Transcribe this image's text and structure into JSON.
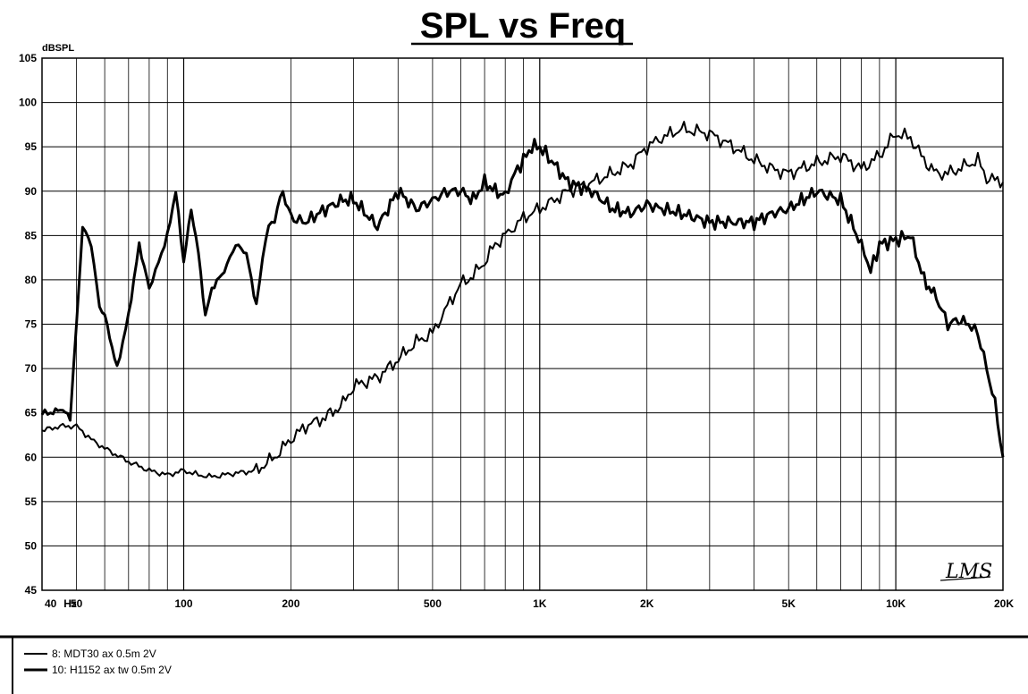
{
  "chart_data": {
    "type": "line",
    "title": "SPL vs Freq",
    "ylabel": "dBSPL",
    "xscale": "log",
    "xlim": [
      40,
      20000
    ],
    "ylim": [
      45,
      105
    ],
    "grid": true,
    "y_ticks": [
      "105",
      "100",
      "95",
      "90",
      "85",
      "80",
      "75",
      "70",
      "65",
      "60",
      "55",
      "50",
      "45"
    ],
    "x_ticks": [
      {
        "value": 40,
        "label": "40"
      },
      {
        "value": 48,
        "label": "Hz"
      },
      {
        "value": 50,
        "label": "50"
      },
      {
        "value": 100,
        "label": "100"
      },
      {
        "value": 200,
        "label": "200"
      },
      {
        "value": 500,
        "label": "500"
      },
      {
        "value": 1000,
        "label": "1K"
      },
      {
        "value": 2000,
        "label": "2K"
      },
      {
        "value": 5000,
        "label": "5K"
      },
      {
        "value": 10000,
        "label": "10K"
      },
      {
        "value": 20000,
        "label": "20K"
      }
    ],
    "legend_position": "bottom-left",
    "series": [
      {
        "name": "8: MDT30 ax 0.5m 2V",
        "x": [
          40,
          45,
          50,
          55,
          60,
          70,
          80,
          90,
          100,
          110,
          120,
          140,
          160,
          180,
          200,
          220,
          250,
          280,
          300,
          350,
          400,
          450,
          500,
          550,
          600,
          650,
          700,
          750,
          800,
          850,
          900,
          1000,
          1100,
          1200,
          1400,
          1600,
          1800,
          2000,
          2200,
          2500,
          3000,
          3500,
          4000,
          4500,
          5000,
          6000,
          7000,
          8000,
          9000,
          10000,
          11000,
          12000,
          13000,
          14000,
          15000,
          17000,
          18000,
          20000
        ],
        "y": [
          63,
          63.5,
          63.5,
          62,
          61,
          59.5,
          58.5,
          58,
          58.5,
          58,
          57.8,
          58.2,
          58.5,
          60,
          62,
          63.5,
          64.5,
          66,
          68,
          69,
          71,
          73,
          74,
          77,
          79.5,
          80.5,
          82,
          84,
          85,
          86,
          87,
          88,
          89,
          90,
          91,
          92,
          93,
          95,
          96,
          97,
          96.5,
          95,
          93.5,
          92.5,
          92,
          93.2,
          94,
          92.5,
          94,
          96.5,
          96,
          93.5,
          92,
          92,
          92.5,
          93.5,
          91.5,
          91
        ]
      },
      {
        "name": "10: H1152 ax tw 0.5m 2V",
        "x": [
          40,
          43,
          45,
          48,
          50,
          52,
          55,
          58,
          60,
          65,
          70,
          75,
          80,
          85,
          90,
          95,
          100,
          105,
          110,
          115,
          120,
          130,
          140,
          150,
          160,
          170,
          180,
          190,
          200,
          220,
          250,
          280,
          300,
          350,
          400,
          450,
          500,
          550,
          600,
          650,
          700,
          750,
          800,
          850,
          900,
          950,
          1000,
          1100,
          1200,
          1400,
          1600,
          1800,
          2000,
          2200,
          2500,
          3000,
          3500,
          4000,
          4500,
          5000,
          6000,
          7000,
          8000,
          8500,
          9000,
          10000,
          11000,
          12000,
          13000,
          14000,
          15000,
          16000,
          17000,
          18000,
          19000,
          20000
        ],
        "y": [
          65,
          65,
          65.5,
          64.5,
          75,
          86,
          84,
          77,
          76,
          70,
          76,
          84,
          79,
          82,
          85,
          90,
          82,
          88,
          83,
          76,
          79,
          81,
          84,
          83,
          77,
          85,
          87,
          90,
          87,
          86.5,
          88,
          89,
          89,
          86,
          90,
          88,
          89,
          90,
          90,
          89,
          91,
          90,
          89.5,
          92,
          93.5,
          95,
          95,
          93,
          91,
          90,
          88,
          87.5,
          88.5,
          88,
          87.5,
          86.5,
          86.5,
          86.5,
          87.5,
          88,
          90,
          89,
          84,
          81,
          84,
          84.5,
          85,
          80,
          78,
          75,
          75.5,
          75,
          74,
          70,
          66,
          60
        ]
      }
    ]
  },
  "signature_text": "LMS"
}
